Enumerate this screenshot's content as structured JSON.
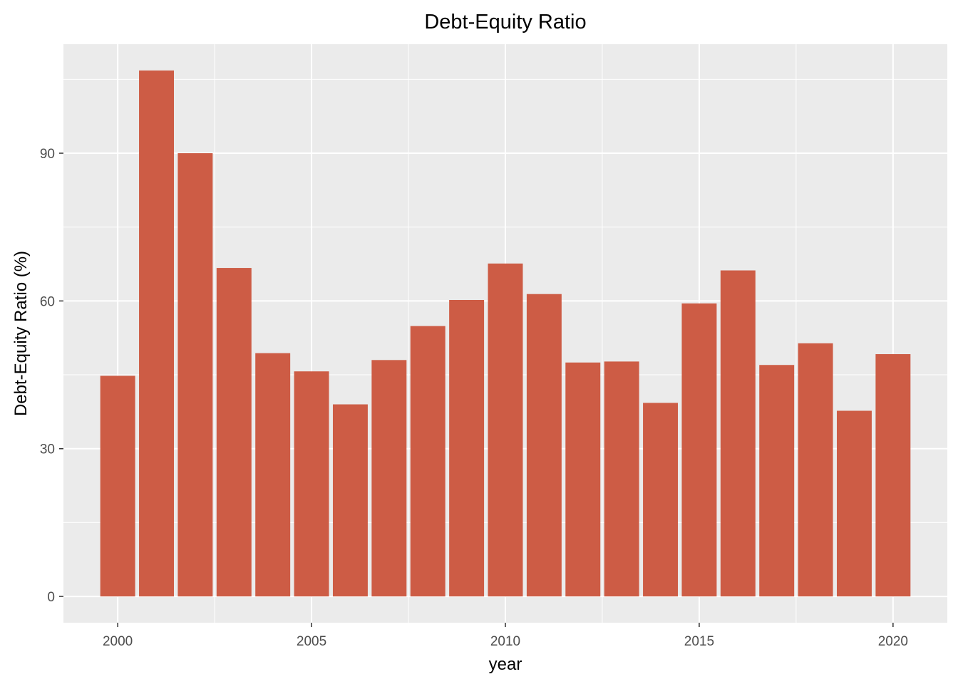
{
  "chart_data": {
    "type": "bar",
    "title": "Debt-Equity Ratio",
    "xlabel": "year",
    "ylabel": "Debt-Equity Ratio (%)",
    "x": [
      2000,
      2001,
      2002,
      2003,
      2004,
      2005,
      2006,
      2007,
      2008,
      2009,
      2010,
      2011,
      2012,
      2013,
      2014,
      2015,
      2016,
      2017,
      2018,
      2019,
      2020
    ],
    "values": [
      44.8,
      106.8,
      90.0,
      66.7,
      49.4,
      45.7,
      39.0,
      48.0,
      54.9,
      60.2,
      67.6,
      61.4,
      47.5,
      47.7,
      39.3,
      59.5,
      66.2,
      47.0,
      51.4,
      37.7,
      49.2
    ],
    "xlim": [
      1998.6,
      2021.4
    ],
    "ylim": [
      -5.34,
      112.14
    ],
    "x_ticks": [
      2000,
      2005,
      2010,
      2015,
      2020
    ],
    "x_tick_labels": [
      "2000",
      "2005",
      "2010",
      "2015",
      "2020"
    ],
    "y_ticks": [
      0,
      30,
      60,
      90
    ],
    "y_tick_labels": [
      "0",
      "30",
      "60",
      "90"
    ],
    "grid": true,
    "legend": "none",
    "bar_color": "#CD5C45",
    "panel_background": "#EBEBEB",
    "grid_color": "#FFFFFF"
  }
}
